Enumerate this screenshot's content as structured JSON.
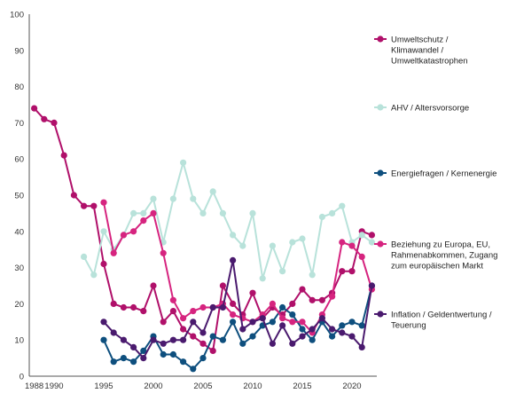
{
  "chart_data": {
    "type": "line",
    "title": "",
    "xlabel": "",
    "ylabel": "",
    "xlim": [
      1987.5,
      2022.5
    ],
    "ylim": [
      0,
      100
    ],
    "yticks": [
      0,
      10,
      20,
      30,
      40,
      50,
      60,
      70,
      80,
      90,
      100
    ],
    "xticks": [
      {
        "value": 1988,
        "label": "1988"
      },
      {
        "value": 1990,
        "label": "1990"
      },
      {
        "value": 1995,
        "label": "1995"
      },
      {
        "value": 2000,
        "label": "2000"
      },
      {
        "value": 2005,
        "label": "2005"
      },
      {
        "value": 2010,
        "label": "2010"
      },
      {
        "value": 2015,
        "label": "2015"
      },
      {
        "value": 2020,
        "label": "2020"
      }
    ],
    "grid": false,
    "legend_position": "right",
    "series": [
      {
        "name": "Umweltschutz / Klimawandel / Umweltkatastrophen",
        "legend_lines": [
          "Umweltschutz /",
          "Klimawandel /",
          "Umweltkatastrophen"
        ],
        "color": "#b0106a",
        "x": [
          1988,
          1989,
          1990,
          1991,
          1992,
          1993,
          1994,
          1995,
          1996,
          1997,
          1998,
          1999,
          2000,
          2001,
          2002,
          2003,
          2004,
          2005,
          2006,
          2007,
          2008,
          2009,
          2010,
          2011,
          2012,
          2013,
          2014,
          2015,
          2016,
          2017,
          2018,
          2019,
          2020,
          2021,
          2022
        ],
        "y": [
          74,
          71,
          70,
          61,
          50,
          47,
          47,
          31,
          20,
          19,
          19,
          18,
          25,
          15,
          18,
          13,
          11,
          9,
          7,
          25,
          20,
          17,
          23,
          16,
          19,
          17,
          20,
          24,
          21,
          21,
          23,
          29,
          29,
          40,
          39
        ]
      },
      {
        "name": "AHV / Altersvorsorge",
        "legend_lines": [
          "AHV / Altersvorsorge"
        ],
        "color": "#b8e2da",
        "x": [
          1993,
          1994,
          1995,
          1996,
          1997,
          1998,
          1999,
          2000,
          2001,
          2002,
          2003,
          2004,
          2005,
          2006,
          2007,
          2008,
          2009,
          2010,
          2011,
          2012,
          2013,
          2014,
          2015,
          2016,
          2017,
          2018,
          2019,
          2020,
          2021,
          2022
        ],
        "y": [
          33,
          28,
          40,
          35,
          39,
          45,
          45,
          49,
          37,
          49,
          59,
          49,
          45,
          51,
          45,
          39,
          36,
          45,
          27,
          36,
          29,
          37,
          38,
          28,
          44,
          45,
          47,
          37,
          39,
          37
        ]
      },
      {
        "name": "Energiefragen / Kernenergie",
        "legend_lines": [
          "Energiefragen / Kernenergie"
        ],
        "color": "#0e4f7e",
        "x": [
          1995,
          1996,
          1997,
          1998,
          1999,
          2000,
          2001,
          2002,
          2003,
          2004,
          2005,
          2006,
          2007,
          2008,
          2009,
          2010,
          2011,
          2012,
          2013,
          2014,
          2015,
          2016,
          2017,
          2018,
          2019,
          2020,
          2021,
          2022
        ],
        "y": [
          10,
          4,
          5,
          4,
          7,
          11,
          6,
          6,
          4,
          2,
          5,
          11,
          10,
          15,
          9,
          11,
          14,
          15,
          19,
          17,
          13,
          10,
          15,
          11,
          14,
          15,
          14,
          25
        ]
      },
      {
        "name": "Beziehung zu Europa, EU, Rahmenabkommen, Zugang zum europäischen Markt",
        "legend_lines": [
          "Beziehung zu Europa, EU,",
          "Rahmenabkommen, Zugang",
          "zum europäischen Markt"
        ],
        "color": "#d6247f",
        "x": [
          1995,
          1996,
          1997,
          1998,
          1999,
          2000,
          2001,
          2002,
          2003,
          2004,
          2005,
          2006,
          2007,
          2008,
          2009,
          2010,
          2011,
          2012,
          2013,
          2014,
          2015,
          2016,
          2017,
          2018,
          2019,
          2020,
          2021,
          2022
        ],
        "y": [
          48,
          34,
          39,
          40,
          43,
          45,
          34,
          21,
          16,
          18,
          19,
          19,
          20,
          17,
          16,
          15,
          17,
          20,
          16,
          15,
          15,
          12,
          17,
          22,
          37,
          36,
          33,
          24
        ]
      },
      {
        "name": "Inflation / Geldentwertung / Teuerung",
        "legend_lines": [
          "Inflation / Geldentwertung /",
          "Teuerung"
        ],
        "color": "#4a1a6e",
        "x": [
          1995,
          1996,
          1997,
          1998,
          1999,
          2000,
          2001,
          2002,
          2003,
          2004,
          2005,
          2006,
          2007,
          2008,
          2009,
          2010,
          2011,
          2012,
          2013,
          2014,
          2015,
          2016,
          2017,
          2018,
          2019,
          2020,
          2021,
          2022
        ],
        "y": [
          15,
          12,
          10,
          8,
          5,
          10,
          9,
          10,
          10,
          15,
          12,
          19,
          19,
          32,
          13,
          15,
          16,
          9,
          14,
          9,
          11,
          13,
          16,
          13,
          12,
          11,
          8,
          25
        ]
      }
    ]
  }
}
